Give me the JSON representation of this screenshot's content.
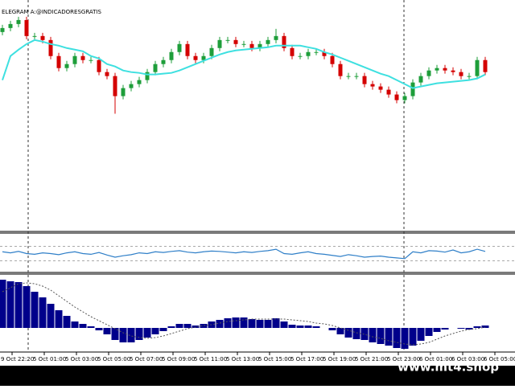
{
  "header": {
    "label": "ELEGRAM A:@INDICADORESGRATIS"
  },
  "watermark": "www.mt4.shop",
  "time_labels": [
    "9 Oct 22:20",
    "5 Oct 01:00",
    "5 Oct 03:00",
    "5 Oct 05:00",
    "5 Oct 07:00",
    "5 Oct 09:00",
    "5 Oct 11:00",
    "5 Oct 13:00",
    "5 Oct 15:00",
    "5 Oct 17:00",
    "5 Oct 19:00",
    "5 Oct 21:00",
    "5 Oct 23:00",
    "6 Oct 01:00",
    "6 Oct 03:00",
    "6 Oct 05:00"
  ],
  "chart_data": [
    {
      "type": "candlestick",
      "ylim": [
        12,
        300
      ],
      "up_color": "#1e9e3a",
      "down_color": "#d40000",
      "open": [
        260,
        265,
        270,
        275,
        255,
        255,
        250,
        230,
        215,
        220,
        230,
        225,
        225,
        210,
        205,
        180,
        190,
        195,
        200,
        210,
        220,
        225,
        235,
        245,
        230,
        225,
        230,
        240,
        250,
        250,
        245,
        245,
        240,
        245,
        250,
        255,
        240,
        230,
        230,
        235,
        235,
        230,
        220,
        205,
        205,
        205,
        195,
        192,
        188,
        182,
        175,
        180,
        197,
        205,
        212,
        215,
        212,
        210,
        205,
        205,
        225
      ],
      "high": [
        269,
        274,
        279,
        279,
        259,
        259,
        254,
        234,
        224,
        234,
        234,
        229,
        229,
        214,
        209,
        194,
        199,
        204,
        214,
        224,
        229,
        239,
        249,
        249,
        234,
        234,
        244,
        254,
        254,
        254,
        249,
        249,
        249,
        254,
        264,
        259,
        244,
        234,
        239,
        239,
        239,
        234,
        224,
        209,
        209,
        209,
        199,
        196,
        192,
        186,
        184,
        201,
        209,
        216,
        219,
        219,
        216,
        214,
        209,
        229,
        229
      ],
      "low": [
        256,
        261,
        266,
        251,
        251,
        246,
        226,
        211,
        211,
        216,
        221,
        221,
        206,
        201,
        158,
        176,
        186,
        191,
        196,
        206,
        216,
        221,
        231,
        226,
        221,
        221,
        226,
        236,
        246,
        241,
        241,
        236,
        236,
        241,
        246,
        236,
        226,
        226,
        226,
        231,
        226,
        216,
        201,
        201,
        201,
        191,
        188,
        184,
        178,
        171,
        171,
        176,
        193,
        201,
        208,
        208,
        206,
        201,
        201,
        201,
        206
      ],
      "close": [
        265,
        270,
        275,
        255,
        255,
        250,
        230,
        215,
        220,
        230,
        225,
        225,
        210,
        205,
        180,
        190,
        195,
        200,
        210,
        220,
        225,
        235,
        245,
        230,
        225,
        230,
        240,
        250,
        250,
        245,
        245,
        240,
        245,
        250,
        255,
        240,
        230,
        230,
        235,
        235,
        230,
        220,
        205,
        205,
        205,
        195,
        192,
        188,
        182,
        175,
        180,
        197,
        205,
        212,
        215,
        212,
        210,
        205,
        205,
        225,
        210
      ],
      "ma": {
        "color": "#3ee0e0",
        "values": [
          200,
          230,
          238,
          245,
          250,
          248,
          245,
          243,
          240,
          238,
          236,
          230,
          227,
          220,
          217,
          212,
          210,
          209,
          207,
          207,
          208,
          209,
          212,
          216,
          220,
          224,
          228,
          232,
          235,
          237,
          238,
          239,
          240,
          241,
          243,
          243,
          243,
          243,
          241,
          239,
          235,
          232,
          228,
          224,
          220,
          216,
          212,
          208,
          205,
          200,
          195,
          190,
          192,
          194,
          196,
          197,
          198,
          199,
          200,
          202,
          207
        ]
      }
    },
    {
      "type": "line",
      "ylim": [
        0,
        100
      ],
      "levels": [
        70,
        30
      ],
      "color": "#2f7fc8",
      "values": [
        55,
        52,
        56,
        50,
        48,
        52,
        50,
        47,
        52,
        55,
        50,
        48,
        53,
        46,
        40,
        44,
        47,
        52,
        50,
        55,
        53,
        56,
        58,
        54,
        52,
        55,
        57,
        56,
        54,
        52,
        55,
        53,
        56,
        58,
        62,
        50,
        48,
        52,
        55,
        50,
        48,
        45,
        42,
        47,
        44,
        40,
        42,
        43,
        40,
        38,
        36,
        55,
        52,
        58,
        57,
        54,
        60,
        52,
        55,
        62,
        56
      ]
    },
    {
      "type": "histogram",
      "ylim": [
        -30,
        66
      ],
      "color": "#00008b",
      "signal_color": "#555555",
      "values": [
        60,
        58,
        57,
        52,
        45,
        38,
        30,
        22,
        15,
        8,
        5,
        2,
        -3,
        -8,
        -15,
        -18,
        -18,
        -15,
        -12,
        -8,
        -4,
        2,
        5,
        5,
        3,
        5,
        8,
        10,
        12,
        13,
        13,
        11,
        10,
        10,
        12,
        8,
        4,
        3,
        3,
        2,
        0,
        -3,
        -8,
        -12,
        -14,
        -15,
        -18,
        -20,
        -22,
        -25,
        -26,
        -22,
        -16,
        -10,
        -5,
        -2,
        0,
        -1,
        -2,
        2,
        3
      ],
      "signal": [
        45,
        50,
        55,
        56,
        55,
        52,
        47,
        40,
        33,
        26,
        20,
        14,
        9,
        4,
        -1,
        -6,
        -10,
        -12,
        -13,
        -12,
        -10,
        -7,
        -4,
        -1,
        1,
        3,
        4,
        6,
        8,
        9,
        10,
        11,
        11,
        11,
        11,
        11,
        10,
        9,
        8,
        6,
        5,
        3,
        0,
        -3,
        -6,
        -8,
        -11,
        -13,
        -16,
        -18,
        -20,
        -21,
        -20,
        -18,
        -14,
        -10,
        -7,
        -4,
        -2,
        -1,
        1
      ]
    }
  ]
}
